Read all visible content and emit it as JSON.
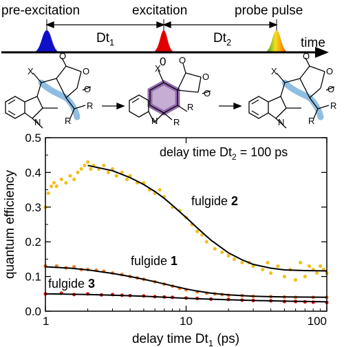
{
  "timeline": {
    "labels": {
      "pre_excitation": "pre-excitation",
      "excitation": "excitation",
      "probe_pulse": "probe pulse",
      "time": "time",
      "zero": "0",
      "dt1_base": "Dt",
      "dt1_sub": "1",
      "dt2_base": "Dt",
      "dt2_sub": "2"
    },
    "pulse_colors": {
      "pre_excitation": "#1010c8",
      "excitation": "#e00000",
      "probe_colors": [
        "#1a8a1a",
        "#f0e020",
        "#ff8a00",
        "#e00000"
      ]
    }
  },
  "molecules": {
    "substituent_x": "X",
    "substituent_r": "R",
    "nitrogen": "N",
    "oxygen": "O",
    "ring_highlight_color": "#6aa8d8",
    "closed_ring_color": "#8a5aa8"
  },
  "chart_data": {
    "type": "scatter",
    "annotation": {
      "text_base": "delay time Dt",
      "text_sub": "2",
      "text_tail": " = 100 ps"
    },
    "xlabel": {
      "base": "delay time Dt",
      "sub": "1",
      "tail": " (ps)"
    },
    "ylabel": "quantum efficiency",
    "xscale": "log",
    "xlim": [
      1,
      100
    ],
    "ylim": [
      0.0,
      0.5
    ],
    "xticks": [
      1,
      10,
      100
    ],
    "xtick_labels": [
      "1",
      "10",
      "100"
    ],
    "yticks": [
      0.0,
      0.1,
      0.2,
      0.3,
      0.4,
      0.5
    ],
    "ytick_labels": [
      "0.0",
      "0.1",
      "0.2",
      "0.3",
      "0.4",
      "0.5"
    ],
    "grid": false,
    "series": [
      {
        "label_base": "fulgide ",
        "label_num": "2",
        "color": "#f0c020",
        "points": [
          [
            1.0,
            0.3
          ],
          [
            1.05,
            0.34
          ],
          [
            1.1,
            0.36
          ],
          [
            1.15,
            0.37
          ],
          [
            1.2,
            0.36
          ],
          [
            1.3,
            0.38
          ],
          [
            1.4,
            0.37
          ],
          [
            1.5,
            0.39
          ],
          [
            1.6,
            0.38
          ],
          [
            1.7,
            0.4
          ],
          [
            1.8,
            0.41
          ],
          [
            1.9,
            0.42
          ],
          [
            2.0,
            0.43
          ],
          [
            2.1,
            0.41
          ],
          [
            2.2,
            0.42
          ],
          [
            2.4,
            0.41
          ],
          [
            2.6,
            0.42
          ],
          [
            2.8,
            0.4
          ],
          [
            3.0,
            0.41
          ],
          [
            3.2,
            0.39
          ],
          [
            3.5,
            0.4
          ],
          [
            3.8,
            0.38
          ],
          [
            4.0,
            0.39
          ],
          [
            4.5,
            0.37
          ],
          [
            5.0,
            0.37
          ],
          [
            5.5,
            0.35
          ],
          [
            6.0,
            0.34
          ],
          [
            6.5,
            0.35
          ],
          [
            7.0,
            0.33
          ],
          [
            8.0,
            0.3
          ],
          [
            9.0,
            0.29
          ],
          [
            10.0,
            0.27
          ],
          [
            11.0,
            0.25
          ],
          [
            12.0,
            0.23
          ],
          [
            13.0,
            0.22
          ],
          [
            14.0,
            0.2
          ],
          [
            16.0,
            0.18
          ],
          [
            18.0,
            0.17
          ],
          [
            20.0,
            0.16
          ],
          [
            22.0,
            0.15
          ],
          [
            25.0,
            0.14
          ],
          [
            28.0,
            0.14
          ],
          [
            30.0,
            0.13
          ],
          [
            35.0,
            0.12
          ],
          [
            38.0,
            0.14
          ],
          [
            40.0,
            0.11
          ],
          [
            45.0,
            0.13
          ],
          [
            50.0,
            0.1
          ],
          [
            55.0,
            0.12
          ],
          [
            60.0,
            0.09
          ],
          [
            65.0,
            0.14
          ],
          [
            70.0,
            0.1
          ],
          [
            75.0,
            0.13
          ],
          [
            80.0,
            0.12
          ],
          [
            85.0,
            0.11
          ],
          [
            90.0,
            0.13
          ],
          [
            95.0,
            0.12
          ],
          [
            100.0,
            0.11
          ]
        ],
        "fit": [
          [
            2.0,
            0.42
          ],
          [
            3.0,
            0.405
          ],
          [
            4.0,
            0.385
          ],
          [
            5.0,
            0.365
          ],
          [
            6.0,
            0.345
          ],
          [
            7.0,
            0.325
          ],
          [
            8.0,
            0.305
          ],
          [
            10.0,
            0.27
          ],
          [
            12.0,
            0.24
          ],
          [
            15.0,
            0.205
          ],
          [
            20.0,
            0.168
          ],
          [
            25.0,
            0.148
          ],
          [
            30.0,
            0.135
          ],
          [
            40.0,
            0.124
          ],
          [
            50.0,
            0.119
          ],
          [
            70.0,
            0.117
          ],
          [
            100.0,
            0.116
          ]
        ]
      },
      {
        "label_base": "fulgide ",
        "label_num": "1",
        "color": "#f07820",
        "points": [
          [
            1.0,
            0.13
          ],
          [
            1.2,
            0.13
          ],
          [
            1.4,
            0.125
          ],
          [
            1.6,
            0.128
          ],
          [
            1.8,
            0.12
          ],
          [
            2.0,
            0.12
          ],
          [
            2.3,
            0.118
          ],
          [
            2.6,
            0.115
          ],
          [
            3.0,
            0.11
          ],
          [
            3.5,
            0.106
          ],
          [
            4.0,
            0.1
          ],
          [
            4.5,
            0.096
          ],
          [
            5.0,
            0.092
          ],
          [
            6.0,
            0.085
          ],
          [
            7.0,
            0.078
          ],
          [
            8.0,
            0.072
          ],
          [
            9.0,
            0.066
          ],
          [
            10.0,
            0.062
          ],
          [
            12.0,
            0.056
          ],
          [
            14.0,
            0.052
          ],
          [
            16.0,
            0.05
          ],
          [
            18.0,
            0.048
          ],
          [
            20.0,
            0.046
          ],
          [
            25.0,
            0.045
          ],
          [
            30.0,
            0.043
          ],
          [
            40.0,
            0.042
          ],
          [
            50.0,
            0.041
          ],
          [
            60.0,
            0.04
          ],
          [
            80.0,
            0.04
          ],
          [
            100.0,
            0.04
          ]
        ],
        "fit": [
          [
            1.0,
            0.128
          ],
          [
            1.5,
            0.124
          ],
          [
            2.0,
            0.119
          ],
          [
            3.0,
            0.109
          ],
          [
            4.0,
            0.1
          ],
          [
            5.0,
            0.092
          ],
          [
            6.0,
            0.085
          ],
          [
            8.0,
            0.073
          ],
          [
            10.0,
            0.064
          ],
          [
            12.0,
            0.058
          ],
          [
            15.0,
            0.052
          ],
          [
            20.0,
            0.047
          ],
          [
            30.0,
            0.043
          ],
          [
            50.0,
            0.041
          ],
          [
            100.0,
            0.04
          ]
        ]
      },
      {
        "label_base": "fulgide ",
        "label_num": "3",
        "color": "#e01010",
        "points": [
          [
            1.0,
            0.05
          ],
          [
            1.3,
            0.052
          ],
          [
            1.6,
            0.048
          ],
          [
            2.0,
            0.05
          ],
          [
            2.5,
            0.047
          ],
          [
            3.0,
            0.048
          ],
          [
            3.5,
            0.046
          ],
          [
            4.0,
            0.045
          ],
          [
            5.0,
            0.044
          ],
          [
            6.0,
            0.042
          ],
          [
            7.0,
            0.041
          ],
          [
            8.0,
            0.04
          ],
          [
            10.0,
            0.038
          ],
          [
            12.0,
            0.037
          ],
          [
            15.0,
            0.035
          ],
          [
            20.0,
            0.034
          ],
          [
            25.0,
            0.032
          ],
          [
            30.0,
            0.031
          ],
          [
            40.0,
            0.03
          ],
          [
            50.0,
            0.028
          ],
          [
            60.0,
            0.028
          ],
          [
            70.0,
            0.027
          ],
          [
            80.0,
            0.026
          ],
          [
            100.0,
            0.025
          ]
        ],
        "fit": [
          [
            1.0,
            0.05
          ],
          [
            2.0,
            0.048
          ],
          [
            3.0,
            0.046
          ],
          [
            5.0,
            0.043
          ],
          [
            8.0,
            0.039
          ],
          [
            12.0,
            0.036
          ],
          [
            20.0,
            0.033
          ],
          [
            30.0,
            0.031
          ],
          [
            50.0,
            0.029
          ],
          [
            100.0,
            0.027
          ]
        ]
      }
    ]
  }
}
